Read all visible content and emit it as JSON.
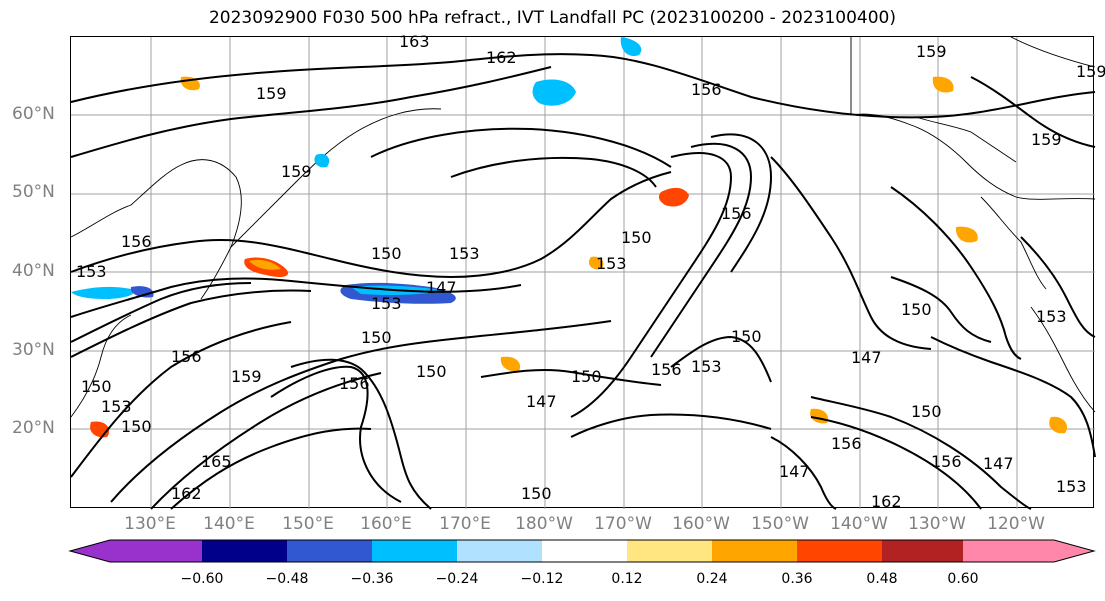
{
  "title": "2023092900 F030 500 hPa refract., IVT Landfall PC (2023100200 - 2023100400)",
  "lat_labels": [
    "60°N",
    "50°N",
    "40°N",
    "30°N",
    "20°N"
  ],
  "lon_labels": [
    "130°E",
    "140°E",
    "150°E",
    "160°E",
    "170°E",
    "180°W",
    "170°W",
    "160°W",
    "150°W",
    "140°W",
    "130°W",
    "120°W"
  ],
  "contour_labels": [
    "163",
    "162",
    "159",
    "159",
    "156",
    "159",
    "156",
    "159",
    "159",
    "150",
    "153",
    "150",
    "153",
    "156",
    "153",
    "147",
    "153",
    "156",
    "150",
    "150",
    "150",
    "156",
    "156",
    "153",
    "150",
    "147",
    "150",
    "153",
    "150",
    "147",
    "150",
    "147",
    "153",
    "159",
    "156",
    "162",
    "165",
    "162",
    "156",
    "147",
    "150",
    "150",
    "153"
  ],
  "colorbar": {
    "colors": [
      "#9932cc",
      "#00008b",
      "#3158d0",
      "#00bfff",
      "#b0e2ff",
      "#ffffff",
      "#ffe680",
      "#ffa500",
      "#ff4500",
      "#b22222",
      "#ff88aa"
    ],
    "ticks": [
      "−0.60",
      "−0.48",
      "−0.36",
      "−0.24",
      "−0.12",
      "0.12",
      "0.24",
      "0.36",
      "0.48",
      "0.60"
    ]
  }
}
